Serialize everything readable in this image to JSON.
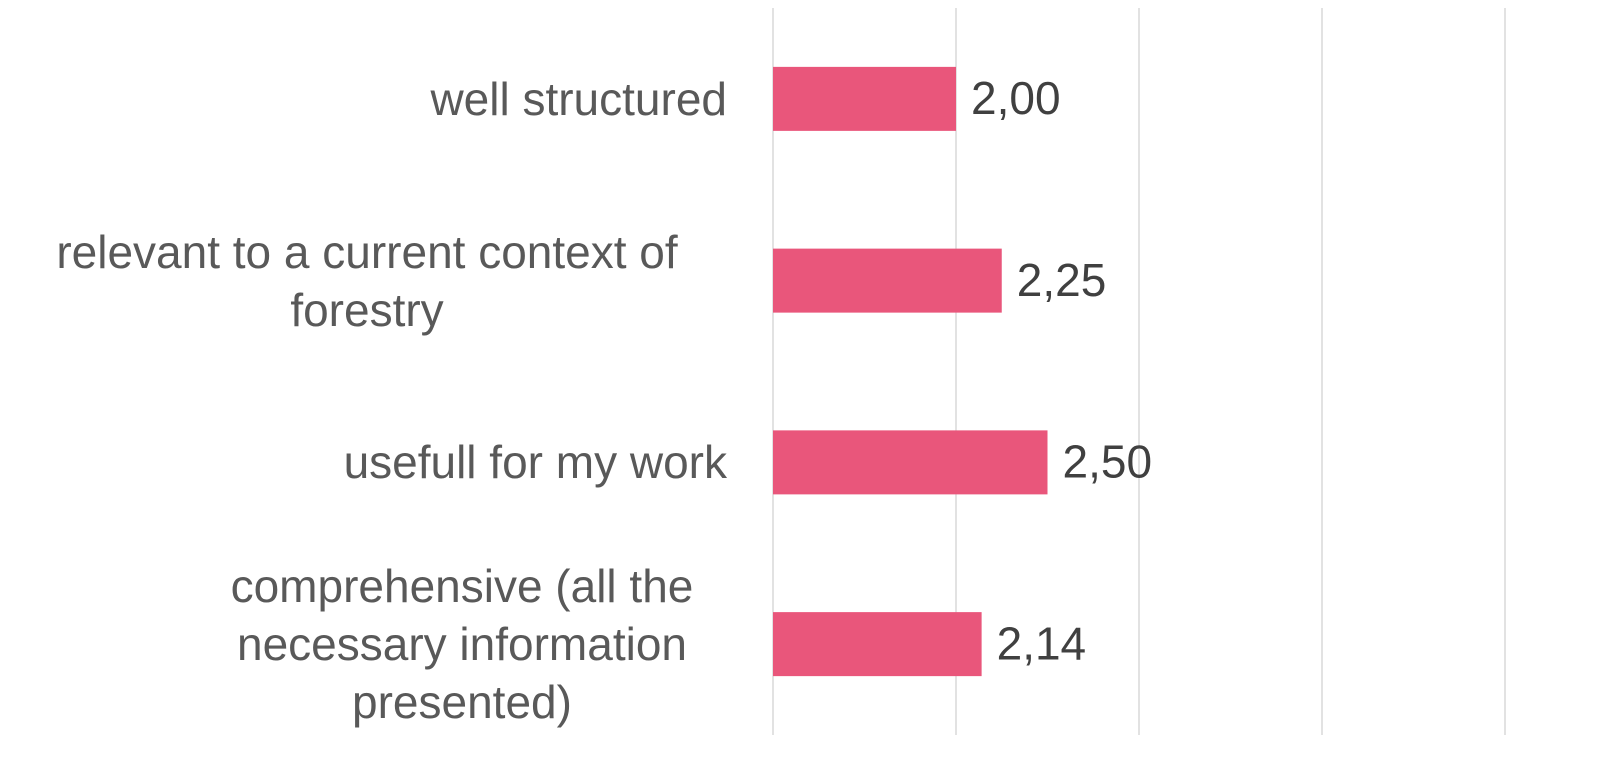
{
  "chart_data": {
    "type": "bar",
    "orientation": "horizontal",
    "categories": [
      "well structured",
      "relevant to a current context of forestry",
      "usefull for my work",
      "comprehensive (all the necessary information presented)"
    ],
    "values": [
      2.0,
      2.25,
      2.5,
      2.14
    ],
    "value_labels": [
      "2,00",
      "2,25",
      "2,50",
      "2,14"
    ],
    "color": "#e9567b",
    "xlim": [
      1,
      5
    ],
    "xticks": [
      1,
      2,
      3,
      4,
      5
    ],
    "grid": true
  }
}
